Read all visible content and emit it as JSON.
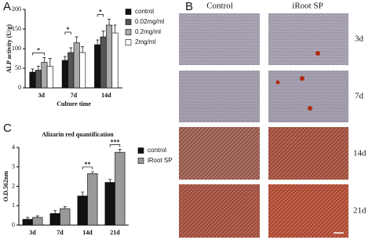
{
  "chart_data": [
    {
      "type": "bar",
      "panel_label": "A",
      "y_label": "ALP activity (U/g)",
      "x_label": "Culture time",
      "categories": [
        "3d",
        "7d",
        "14d"
      ],
      "series": [
        {
          "name": "control",
          "color": "#111111",
          "values": [
            40,
            70,
            110
          ],
          "errors": [
            8,
            10,
            12
          ]
        },
        {
          "name": "0.02mg/ml",
          "color": "#555555",
          "values": [
            45,
            90,
            130
          ],
          "errors": [
            10,
            12,
            15
          ]
        },
        {
          "name": "0.2mg/ml",
          "color": "#aaaaaa",
          "values": [
            65,
            115,
            160
          ],
          "errors": [
            12,
            15,
            15
          ]
        },
        {
          "name": "2mg/ml",
          "color": "#ffffff",
          "values": [
            55,
            90,
            140
          ],
          "errors": [
            20,
            15,
            20
          ]
        }
      ],
      "ylim": [
        0,
        200
      ],
      "yticks": [
        0,
        50,
        100,
        150,
        200
      ],
      "annotations": [
        "*",
        "*",
        "*"
      ]
    },
    {
      "type": "bar",
      "panel_label": "C",
      "title": "Alizarin red quantification",
      "y_label": "O.D.562nm",
      "categories": [
        "3d",
        "7d",
        "14d",
        "21d"
      ],
      "series": [
        {
          "name": "control",
          "color": "#111111",
          "values": [
            0.3,
            0.6,
            1.5,
            2.2
          ],
          "errors": [
            0.1,
            0.15,
            0.2,
            0.15
          ]
        },
        {
          "name": "iRoot SP",
          "color": "#999999",
          "values": [
            0.4,
            0.85,
            2.65,
            3.75
          ],
          "errors": [
            0.08,
            0.1,
            0.1,
            0.15
          ]
        }
      ],
      "ylim": [
        0,
        4
      ],
      "yticks": [
        0,
        1,
        2,
        3,
        4
      ],
      "annotations": [
        "**",
        "***"
      ]
    }
  ],
  "panel_b": {
    "label": "B",
    "columns": [
      "Control",
      "iRoot SP"
    ],
    "rows": [
      "3d",
      "7d",
      "14d",
      "21d"
    ]
  }
}
